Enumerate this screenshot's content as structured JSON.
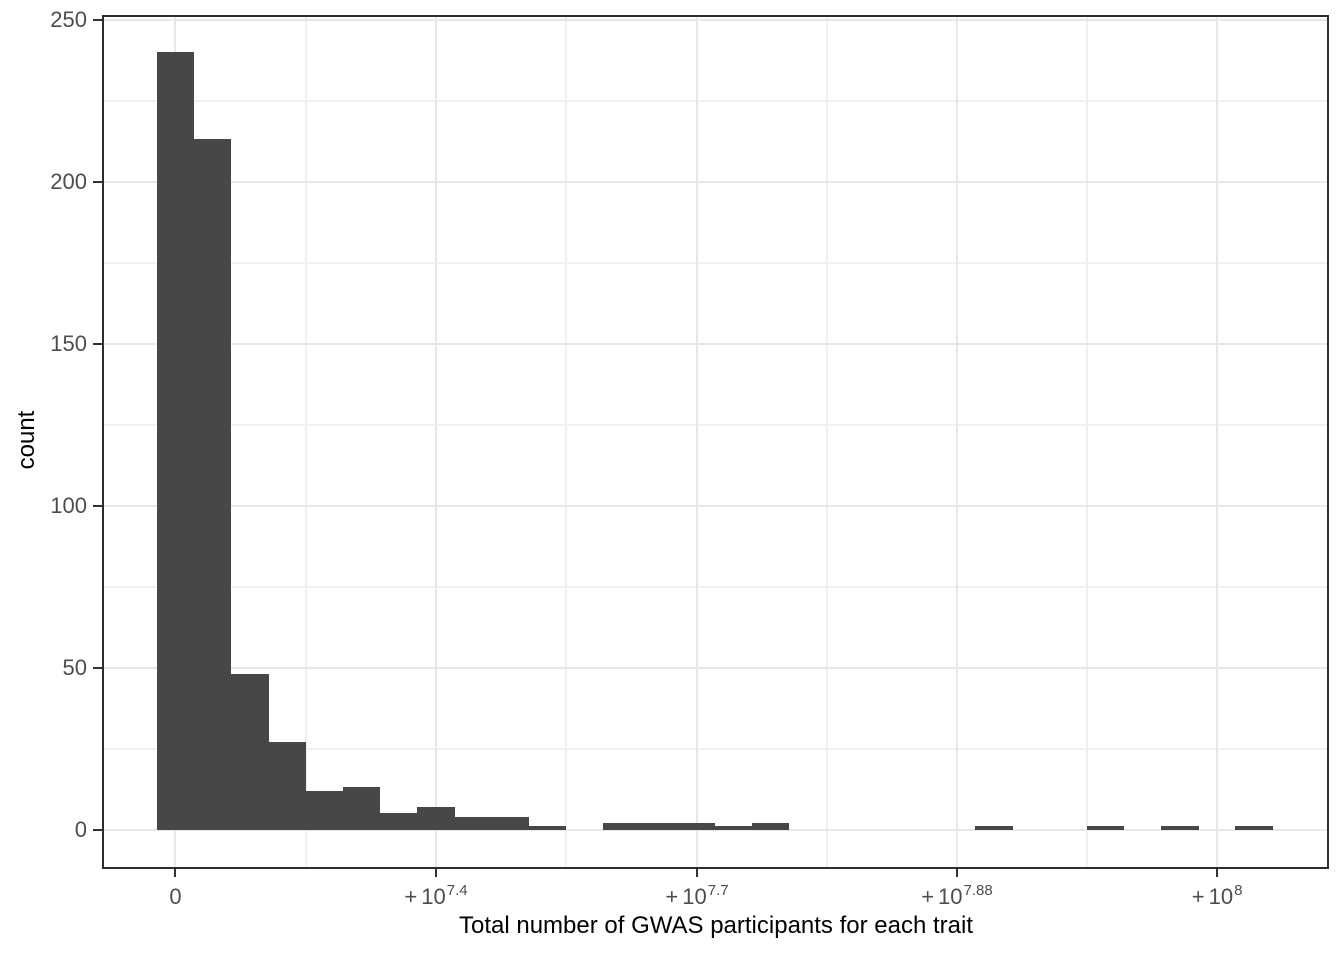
{
  "chart_data": {
    "type": "histogram",
    "title": "",
    "x_axis_title": "Total number of GWAS participants for each trait",
    "y_axis_title": "count",
    "ylim": [
      0,
      250
    ],
    "grid": true,
    "legend": "none",
    "x_scale_note": "nonlinear pseudo-log x scale; ticks labeled 0 and +10^exponent",
    "y_ticks": [
      0,
      50,
      100,
      150,
      200,
      250
    ],
    "y_minor_ticks": [
      25,
      75,
      125,
      175,
      225
    ],
    "x_ticks": [
      {
        "prefix": "",
        "mantissa": "0",
        "exponent": "",
        "position_frac": 0.0599
      },
      {
        "prefix": "+",
        "mantissa": "10",
        "exponent": "7.4",
        "position_frac": 0.2722
      },
      {
        "prefix": "+",
        "mantissa": "10",
        "exponent": "7.7",
        "position_frac": 0.4849
      },
      {
        "prefix": "+",
        "mantissa": "10",
        "exponent": "7.88",
        "position_frac": 0.6968
      },
      {
        "prefix": "+",
        "mantissa": "10",
        "exponent": "8",
        "position_frac": 0.9088
      }
    ],
    "bins": {
      "note": "30 equal-width bins on the transformed x scale, counts listed left to right; first bin centered at x tick 0",
      "start_frac": 0.04442,
      "width_frac": 0.03032,
      "counts": [
        240,
        213,
        48,
        27,
        12,
        13,
        5,
        7,
        4,
        4,
        1,
        0,
        2,
        2,
        2,
        1,
        2,
        0,
        0,
        0,
        0,
        0,
        1,
        0,
        0,
        1,
        0,
        1,
        0,
        1
      ]
    },
    "colors": {
      "bar_fill": "#474747",
      "grid_major": "#E7E7E7",
      "grid_minor": "#F0F0F0",
      "panel_border": "#2E2E2E",
      "tick_mark": "#333333",
      "axis_text": "#4D4D4D",
      "axis_title": "#000000",
      "background": "#FFFFFF"
    }
  }
}
